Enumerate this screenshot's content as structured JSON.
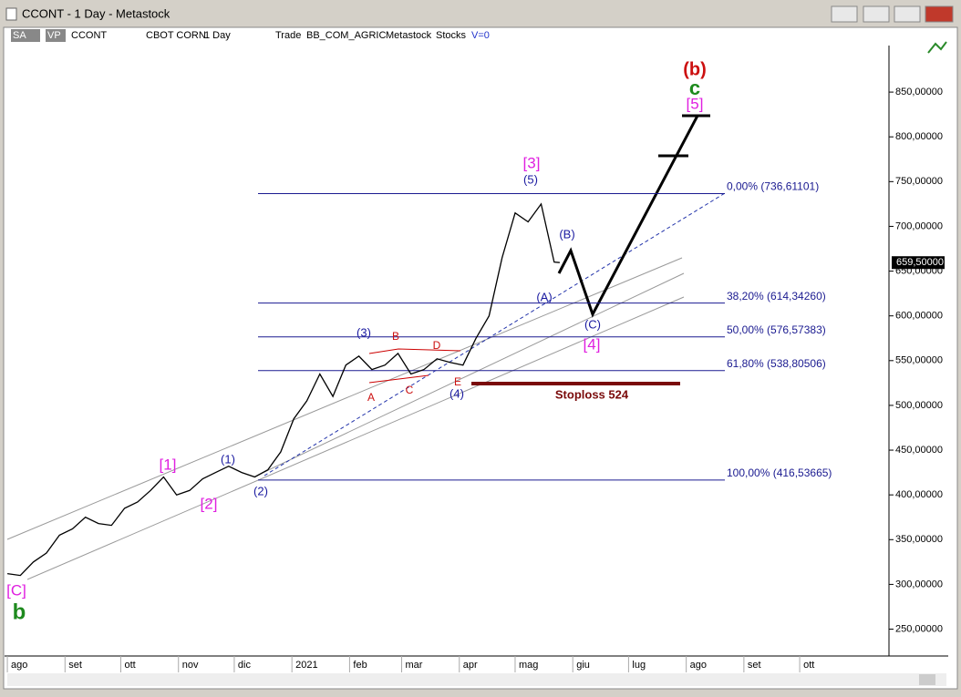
{
  "window_title": "CCONT - 1 Day - Metastock",
  "toolbar": [
    "SA",
    "VP",
    "CCONT",
    "CBOT CORN",
    "1 Day",
    "Trade",
    "BB_COM_AGRIC",
    "Metastock",
    "Stocks",
    "V=0"
  ],
  "chart_data": {
    "type": "line",
    "color": "#000000",
    "x": [
      0,
      7,
      14,
      21,
      28,
      35,
      42,
      49,
      56,
      63,
      70,
      77,
      84,
      91,
      98,
      105,
      112,
      119,
      126,
      133,
      140,
      147,
      154,
      161,
      168,
      175,
      182,
      189,
      196,
      203,
      210,
      217,
      224,
      231,
      238,
      245,
      252,
      259,
      266,
      273,
      280,
      287,
      294,
      297
    ],
    "values": [
      312,
      310,
      325,
      335,
      355,
      362,
      375,
      368,
      366,
      385,
      392,
      405,
      420,
      400,
      405,
      418,
      425,
      432,
      425,
      420,
      428,
      448,
      485,
      505,
      535,
      510,
      545,
      555,
      540,
      545,
      558,
      535,
      540,
      552,
      548,
      545,
      575,
      600,
      665,
      715,
      705,
      725,
      660,
      659.5
    ],
    "last_price": {
      "value": 659.5,
      "label": "659,50000"
    },
    "xlim": [
      -1.5,
      474
    ],
    "xticks": [
      {
        "value": 0,
        "label": "ago"
      },
      {
        "value": 31,
        "label": "set"
      },
      {
        "value": 61,
        "label": "ott"
      },
      {
        "value": 92,
        "label": "nov"
      },
      {
        "value": 122,
        "label": "dic"
      },
      {
        "value": 153,
        "label": "2021"
      },
      {
        "value": 184,
        "label": "feb"
      },
      {
        "value": 212,
        "label": "mar"
      },
      {
        "value": 243,
        "label": "apr"
      },
      {
        "value": 273,
        "label": "mag"
      },
      {
        "value": 304,
        "label": "giu"
      },
      {
        "value": 334,
        "label": "lug"
      },
      {
        "value": 365,
        "label": "ago"
      },
      {
        "value": 396,
        "label": "set"
      },
      {
        "value": 426,
        "label": "ott"
      }
    ],
    "ylim": [
      220,
      902
    ],
    "yticks": [
      {
        "value": 250,
        "label": "250,00000"
      },
      {
        "value": 300,
        "label": "300,00000"
      },
      {
        "value": 350,
        "label": "350,00000"
      },
      {
        "value": 400,
        "label": "400,00000"
      },
      {
        "value": 450,
        "label": "450,00000"
      },
      {
        "value": 500,
        "label": "500,00000"
      },
      {
        "value": 550,
        "label": "550,00000"
      },
      {
        "value": 600,
        "label": "600,00000"
      },
      {
        "value": 650,
        "label": "650,00000"
      },
      {
        "value": 700,
        "label": "700,00000"
      },
      {
        "value": 750,
        "label": "750,00000"
      },
      {
        "value": 800,
        "label": "800,00000"
      },
      {
        "value": 850,
        "label": "850,00000"
      }
    ],
    "fibonacci": [
      {
        "value": 736.61101,
        "label": "0,00% (736,61101)"
      },
      {
        "value": 614.3426,
        "label": "38,20% (614,34260)"
      },
      {
        "value": 576.57383,
        "label": "50,00% (576,57383)"
      },
      {
        "value": 538.80506,
        "label": "61,80% (538,80506)"
      },
      {
        "value": 416.53665,
        "label": "100,00% (416,53665)"
      }
    ],
    "annotations": [
      "(b)",
      "c",
      "[5]",
      "[3]",
      "(5)",
      "(B)",
      "(A)",
      "(C)",
      "[4]",
      "(3)",
      "B",
      "D",
      "A",
      "C",
      "E",
      "(4)",
      "[1]",
      "(1)",
      "[2]",
      "(2)",
      "[C]",
      "b",
      "Stoploss 524"
    ]
  }
}
